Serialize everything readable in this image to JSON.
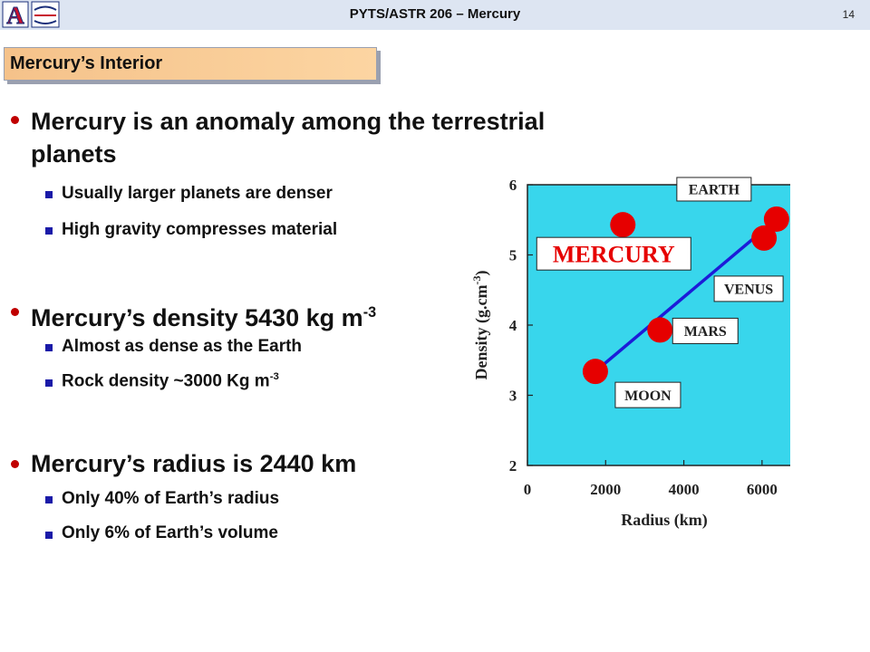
{
  "header": {
    "title": "PYTS/ASTR 206 – Mercury",
    "slide_number": "14",
    "logo_letter": "A"
  },
  "section": {
    "title": "Mercury’s Interior"
  },
  "bullets": {
    "b1": {
      "line1": "Mercury is an anomaly among the terrestrial",
      "line2": "planets",
      "sub1": "Usually larger planets are denser",
      "sub2": "High gravity compresses material"
    },
    "b2": {
      "text": "Mercury’s density 5430 kg m",
      "sup": "-3",
      "sub1": "Almost as dense as the Earth",
      "sub2_text": "Rock density ~3000 Kg m",
      "sub2_sup": "-3"
    },
    "b3": {
      "text": "Mercury’s radius is 2440 km",
      "sub1": "Only 40% of Earth’s radius",
      "sub2": "Only 6% of Earth’s volume"
    }
  },
  "chart_data": {
    "type": "scatter",
    "xlabel": "Radius (km)",
    "ylabel": "Density (g.cm",
    "ylabel_sup": "-3",
    "ylabel_end": ")",
    "xlim": [
      0,
      7000
    ],
    "ylim": [
      2,
      6
    ],
    "xticks": [
      "0",
      "2000",
      "4000",
      "6000"
    ],
    "yticks": [
      "2",
      "3",
      "4",
      "5",
      "6"
    ],
    "points": [
      {
        "label": "MERCURY",
        "x": 2440,
        "y": 5.43
      },
      {
        "label": "MOON",
        "x": 1737,
        "y": 3.34
      },
      {
        "label": "MARS",
        "x": 3390,
        "y": 3.93
      },
      {
        "label": "VENUS",
        "x": 6052,
        "y": 5.24
      },
      {
        "label": "EARTH",
        "x": 6371,
        "y": 5.51
      }
    ],
    "trend_line": {
      "x": [
        1737,
        6371
      ],
      "y": [
        3.34,
        5.51
      ]
    },
    "colors": {
      "plot_bg": "#38d6ec",
      "points": "#e60000",
      "line": "#1c1cd8",
      "mercury_label": "#e60000"
    }
  }
}
